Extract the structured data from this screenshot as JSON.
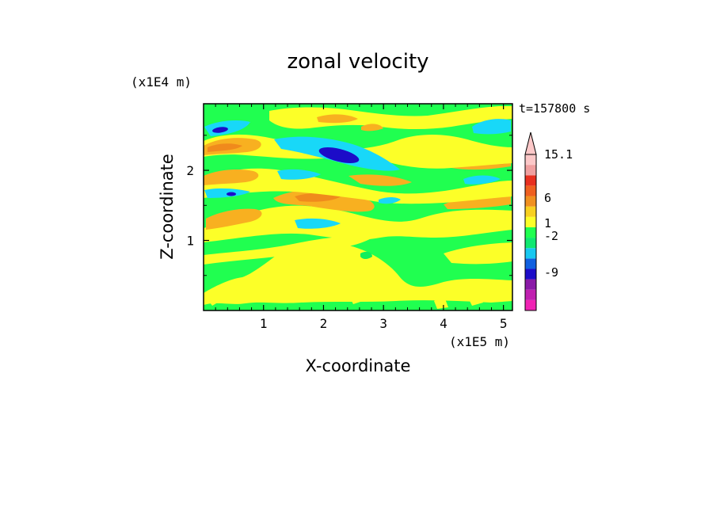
{
  "chart_data": {
    "type": "heatmap",
    "title": "zonal velocity",
    "xlabel": "X-coordinate",
    "ylabel": "Z-coordinate",
    "x_units": "(x1E5 m)",
    "y_units": "(x1E4 m)",
    "time_label": "t=157800 s",
    "xlim": [
      0,
      5.15
    ],
    "ylim": [
      0,
      2.95
    ],
    "x_ticks": [
      "1",
      "2",
      "3",
      "4",
      "5"
    ],
    "y_ticks": [
      "1",
      "2"
    ],
    "x_tick_values": [
      1,
      2,
      3,
      4,
      5
    ],
    "y_tick_values": [
      1,
      2
    ],
    "colorbar": {
      "tick_labels": [
        "15.1",
        "6",
        "1",
        "-2",
        "-9"
      ],
      "colors": [
        "#f023b4",
        "#c020b0",
        "#8a1aa8",
        "#1c0cc8",
        "#1060e0",
        "#18c8f0",
        "#10e870",
        "#20ff50",
        "#fcff28",
        "#f8d020",
        "#f09020",
        "#ef6020",
        "#e83020",
        "#f0a0a0",
        "#fcc8c8"
      ]
    },
    "field": {
      "background": "#20ff50",
      "yellow": "#fcff28",
      "orange": "#f8b020",
      "dark_orange": "#f08a1c",
      "cyan": "#18d8f8",
      "blue": "#1c0cc8",
      "bright_green": "#10ef5c"
    }
  }
}
